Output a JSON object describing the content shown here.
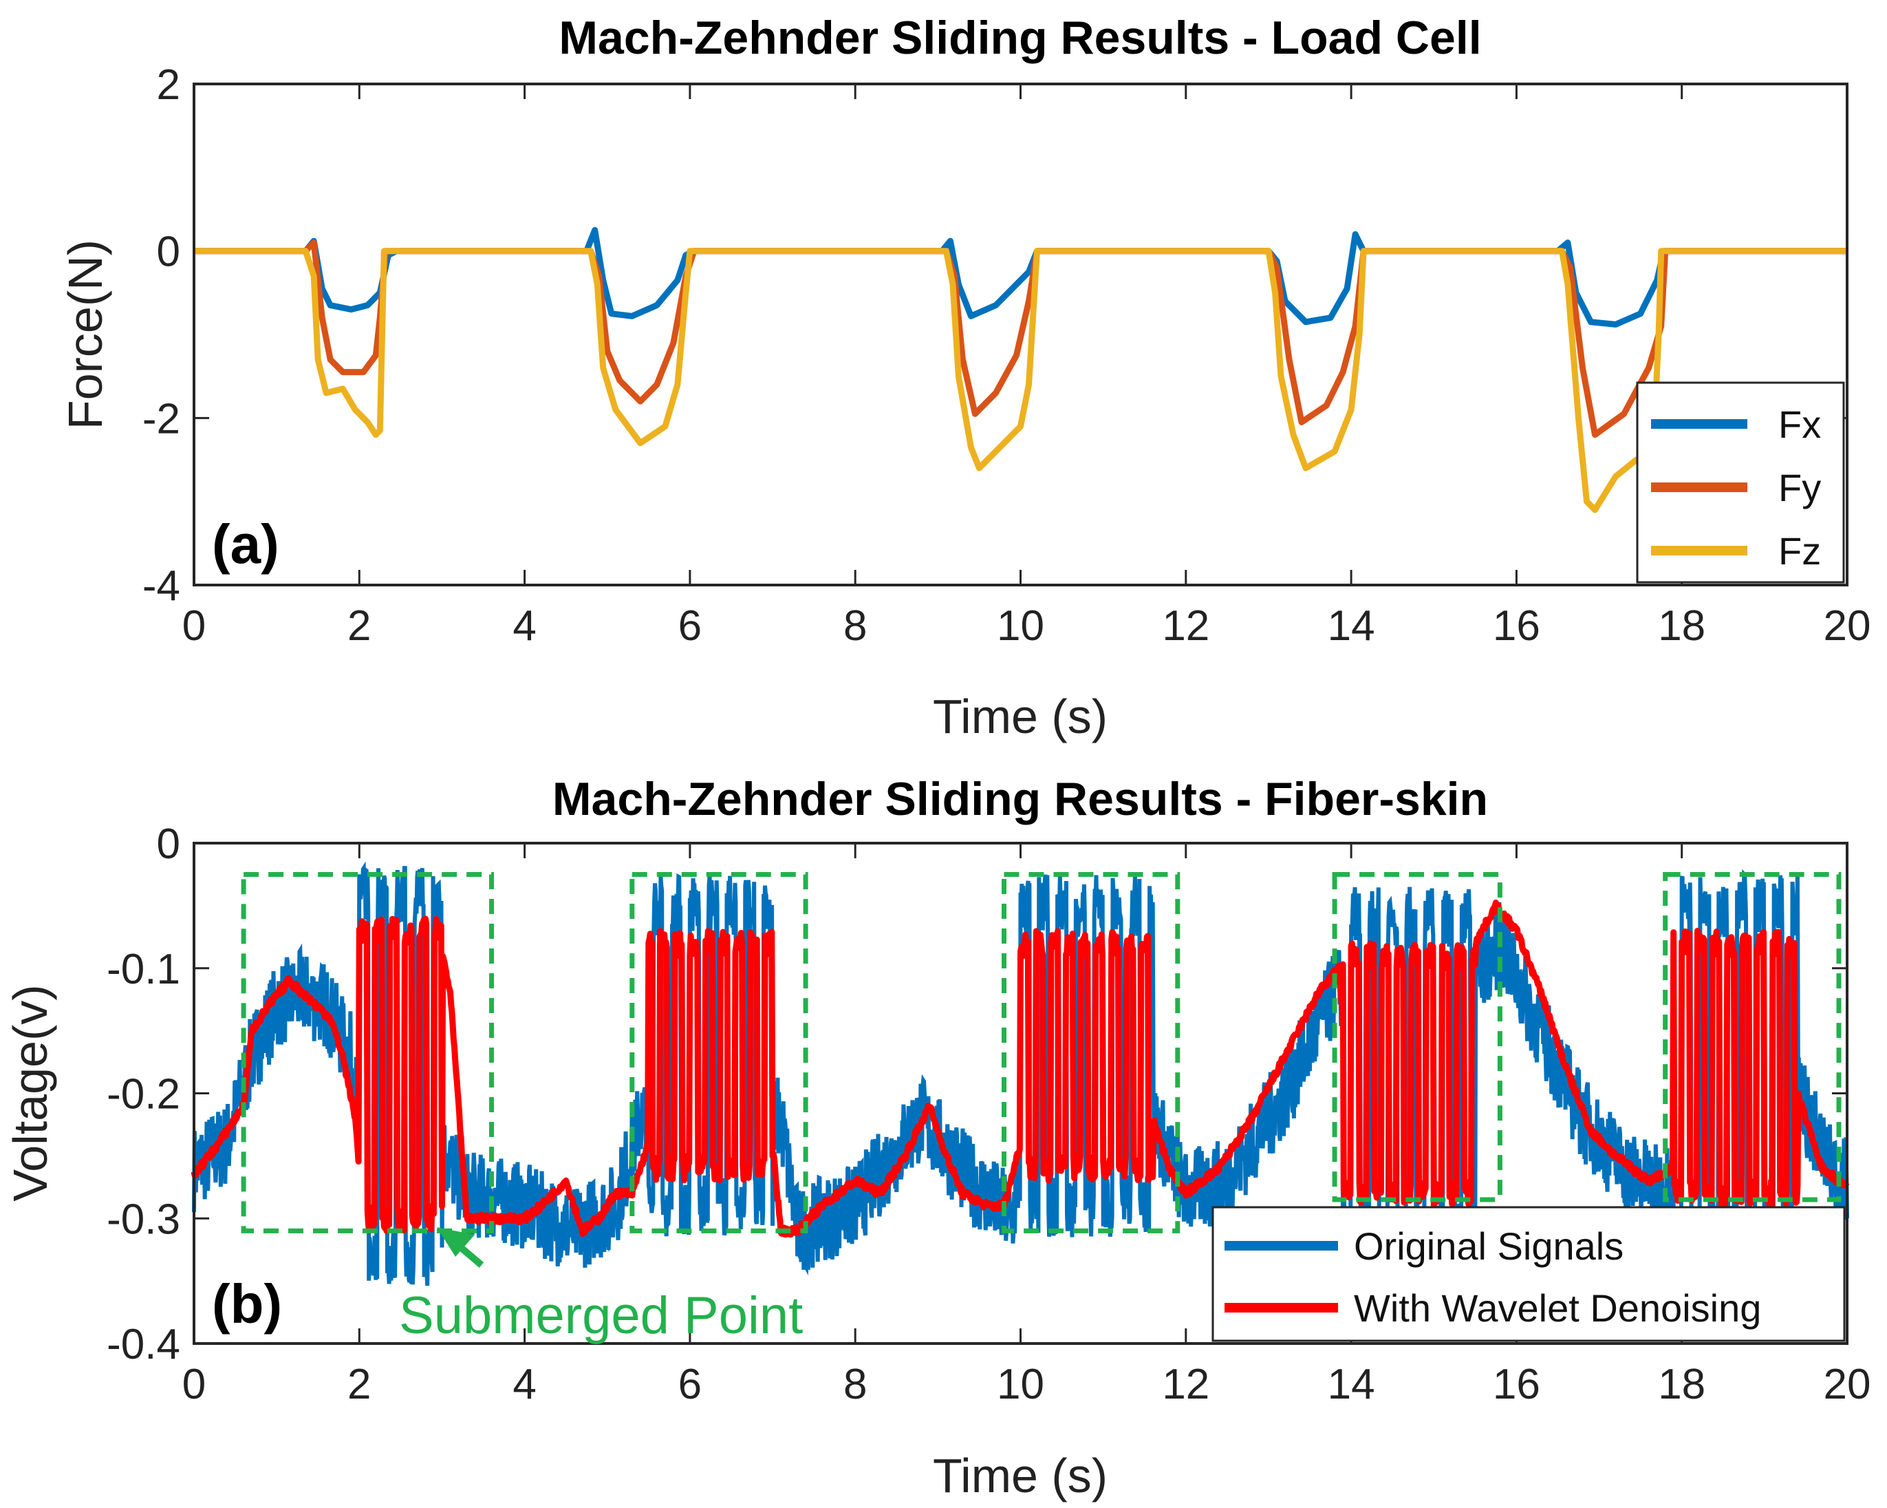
{
  "chart_data": [
    {
      "type": "line",
      "panel_label": "(a)",
      "title": "Mach-Zehnder Sliding Results - Load Cell",
      "xlabel": "Time (s)",
      "ylabel": "Force(N)",
      "xlim": [
        0,
        20
      ],
      "ylim": [
        -4,
        2
      ],
      "xticks": [
        "0",
        "2",
        "4",
        "6",
        "8",
        "10",
        "12",
        "14",
        "16",
        "18",
        "20"
      ],
      "yticks": [
        "2",
        "0",
        "-2",
        "-4"
      ],
      "legend_position": "bottom-right",
      "colors": {
        "Fx": "#0072BD",
        "Fy": "#D95319",
        "Fz": "#EDB120"
      },
      "series": [
        {
          "name": "Fx",
          "points": [
            [
              0,
              0
            ],
            [
              1.35,
              0
            ],
            [
              1.45,
              0.12
            ],
            [
              1.55,
              -0.45
            ],
            [
              1.65,
              -0.65
            ],
            [
              1.9,
              -0.7
            ],
            [
              2.1,
              -0.65
            ],
            [
              2.25,
              -0.5
            ],
            [
              2.35,
              -0.05
            ],
            [
              2.45,
              0
            ],
            [
              4.75,
              0
            ],
            [
              4.85,
              0.25
            ],
            [
              4.95,
              -0.35
            ],
            [
              5.05,
              -0.75
            ],
            [
              5.3,
              -0.78
            ],
            [
              5.6,
              -0.65
            ],
            [
              5.85,
              -0.35
            ],
            [
              5.95,
              -0.05
            ],
            [
              6.05,
              0
            ],
            [
              9.05,
              0
            ],
            [
              9.15,
              0.12
            ],
            [
              9.25,
              -0.4
            ],
            [
              9.4,
              -0.78
            ],
            [
              9.7,
              -0.65
            ],
            [
              9.95,
              -0.4
            ],
            [
              10.1,
              -0.25
            ],
            [
              10.2,
              0
            ],
            [
              13,
              0
            ],
            [
              13.1,
              -0.12
            ],
            [
              13.2,
              -0.6
            ],
            [
              13.45,
              -0.85
            ],
            [
              13.75,
              -0.8
            ],
            [
              13.95,
              -0.45
            ],
            [
              14.05,
              0.2
            ],
            [
              14.15,
              0
            ],
            [
              16.5,
              0
            ],
            [
              16.62,
              0.1
            ],
            [
              16.72,
              -0.5
            ],
            [
              16.9,
              -0.85
            ],
            [
              17.2,
              -0.88
            ],
            [
              17.5,
              -0.75
            ],
            [
              17.7,
              -0.35
            ],
            [
              17.78,
              0
            ],
            [
              20,
              0
            ]
          ]
        },
        {
          "name": "Fy",
          "points": [
            [
              0,
              0
            ],
            [
              1.35,
              0
            ],
            [
              1.45,
              0.1
            ],
            [
              1.55,
              -0.8
            ],
            [
              1.65,
              -1.3
            ],
            [
              1.8,
              -1.45
            ],
            [
              2.05,
              -1.45
            ],
            [
              2.2,
              -1.25
            ],
            [
              2.25,
              -0.8
            ],
            [
              2.32,
              0
            ],
            [
              4.8,
              0
            ],
            [
              4.9,
              -0.3
            ],
            [
              5.0,
              -1.2
            ],
            [
              5.15,
              -1.55
            ],
            [
              5.4,
              -1.8
            ],
            [
              5.6,
              -1.6
            ],
            [
              5.8,
              -1.1
            ],
            [
              5.95,
              -0.3
            ],
            [
              6.05,
              0
            ],
            [
              9.1,
              0
            ],
            [
              9.2,
              -0.3
            ],
            [
              9.3,
              -1.3
            ],
            [
              9.45,
              -1.95
            ],
            [
              9.7,
              -1.7
            ],
            [
              9.95,
              -1.25
            ],
            [
              10.1,
              -0.6
            ],
            [
              10.2,
              0
            ],
            [
              13.0,
              0
            ],
            [
              13.1,
              -0.2
            ],
            [
              13.25,
              -1.3
            ],
            [
              13.4,
              -2.05
            ],
            [
              13.7,
              -1.85
            ],
            [
              13.9,
              -1.45
            ],
            [
              14.05,
              -0.9
            ],
            [
              14.15,
              0
            ],
            [
              16.55,
              0
            ],
            [
              16.65,
              -0.2
            ],
            [
              16.8,
              -1.4
            ],
            [
              16.95,
              -2.2
            ],
            [
              17.3,
              -1.95
            ],
            [
              17.6,
              -1.4
            ],
            [
              17.75,
              -0.9
            ],
            [
              17.8,
              0
            ],
            [
              20,
              0
            ]
          ]
        },
        {
          "name": "Fz",
          "points": [
            [
              0,
              0
            ],
            [
              1.35,
              0
            ],
            [
              1.45,
              -0.3
            ],
            [
              1.5,
              -1.3
            ],
            [
              1.6,
              -1.7
            ],
            [
              1.8,
              -1.65
            ],
            [
              1.95,
              -1.9
            ],
            [
              2.1,
              -2.05
            ],
            [
              2.2,
              -2.2
            ],
            [
              2.25,
              -2.15
            ],
            [
              2.3,
              0
            ],
            [
              4.8,
              0
            ],
            [
              4.88,
              -0.4
            ],
            [
              4.95,
              -1.4
            ],
            [
              5.1,
              -1.9
            ],
            [
              5.4,
              -2.3
            ],
            [
              5.7,
              -2.1
            ],
            [
              5.85,
              -1.6
            ],
            [
              5.95,
              -0.5
            ],
            [
              6.0,
              0
            ],
            [
              9.1,
              0
            ],
            [
              9.18,
              -0.4
            ],
            [
              9.25,
              -1.5
            ],
            [
              9.4,
              -2.35
            ],
            [
              9.5,
              -2.6
            ],
            [
              9.75,
              -2.35
            ],
            [
              10.0,
              -2.1
            ],
            [
              10.1,
              -1.6
            ],
            [
              10.2,
              0
            ],
            [
              13.0,
              0
            ],
            [
              13.08,
              -0.5
            ],
            [
              13.15,
              -1.5
            ],
            [
              13.3,
              -2.2
            ],
            [
              13.45,
              -2.6
            ],
            [
              13.8,
              -2.4
            ],
            [
              14.0,
              -1.9
            ],
            [
              14.1,
              -1.0
            ],
            [
              14.15,
              0
            ],
            [
              16.55,
              0
            ],
            [
              16.62,
              -0.4
            ],
            [
              16.75,
              -2.0
            ],
            [
              16.85,
              -3.0
            ],
            [
              16.95,
              -3.1
            ],
            [
              17.2,
              -2.7
            ],
            [
              17.45,
              -2.5
            ],
            [
              17.65,
              -2.5
            ],
            [
              17.72,
              -1.0
            ],
            [
              17.75,
              0
            ],
            [
              20,
              0
            ]
          ]
        }
      ]
    },
    {
      "type": "line",
      "panel_label": "(b)",
      "title": "Mach-Zehnder Sliding Results - Fiber-skin",
      "xlabel": "Time (s)",
      "ylabel": "Voltage(v)",
      "xlim": [
        0,
        20
      ],
      "ylim": [
        -0.4,
        0
      ],
      "xticks": [
        "0",
        "2",
        "4",
        "6",
        "8",
        "10",
        "12",
        "14",
        "16",
        "18",
        "20"
      ],
      "yticks": [
        "0",
        "-0.1",
        "-0.2",
        "-0.3",
        "-0.4"
      ],
      "legend_position": "bottom-right",
      "colors": {
        "Original Signals": "#0072BD",
        "With Wavelet Denoising": "#FF0000",
        "boxes": "#22b14c"
      },
      "annotation": "Submerged Point",
      "annotation_target": [
        2.9,
        -0.31
      ],
      "highlight_boxes": [
        {
          "x": [
            0.6,
            3.6
          ],
          "y": [
            -0.31,
            -0.025
          ]
        },
        {
          "x": [
            5.3,
            7.4
          ],
          "y": [
            -0.31,
            -0.025
          ]
        },
        {
          "x": [
            9.8,
            11.9
          ],
          "y": [
            -0.31,
            -0.025
          ]
        },
        {
          "x": [
            13.8,
            15.8
          ],
          "y": [
            -0.285,
            -0.025
          ]
        },
        {
          "x": [
            17.8,
            19.9
          ],
          "y": [
            -0.285,
            -0.025
          ]
        }
      ],
      "series": [
        {
          "name": "Original Signals",
          "noise_amplitude": 0.035,
          "points": [
            [
              0,
              -0.26
            ],
            [
              0.4,
              -0.24
            ],
            [
              0.7,
              -0.17
            ],
            [
              1.0,
              -0.13
            ],
            [
              1.3,
              -0.12
            ],
            [
              1.6,
              -0.13
            ],
            [
              1.9,
              -0.17
            ],
            [
              2.0,
              -0.22
            ],
            [
              2.6,
              -0.2
            ],
            [
              3.3,
              -0.28
            ],
            [
              4.0,
              -0.29
            ],
            [
              4.6,
              -0.31
            ],
            [
              5.1,
              -0.29
            ],
            [
              5.4,
              -0.22
            ],
            [
              7.1,
              -0.22
            ],
            [
              7.3,
              -0.31
            ],
            [
              8.0,
              -0.29
            ],
            [
              8.8,
              -0.22
            ],
            [
              9.4,
              -0.27
            ],
            [
              9.9,
              -0.3
            ],
            [
              10.1,
              -0.22
            ],
            [
              11.6,
              -0.22
            ],
            [
              12.0,
              -0.28
            ],
            [
              12.5,
              -0.27
            ],
            [
              13.2,
              -0.2
            ],
            [
              13.8,
              -0.12
            ],
            [
              14.1,
              -0.1
            ],
            [
              15.6,
              -0.1
            ],
            [
              15.8,
              -0.08
            ],
            [
              16.3,
              -0.15
            ],
            [
              16.8,
              -0.22
            ],
            [
              17.3,
              -0.26
            ],
            [
              17.8,
              -0.28
            ],
            [
              18.0,
              -0.2
            ],
            [
              19.4,
              -0.2
            ],
            [
              19.8,
              -0.26
            ],
            [
              20,
              -0.27
            ]
          ]
        },
        {
          "name": "With Wavelet Denoising",
          "osc_intervals": [
            {
              "x": [
                2.0,
                3.0
              ],
              "low": -0.3,
              "high": -0.07
            },
            {
              "x": [
                5.5,
                7.0
              ],
              "low": -0.26,
              "high": -0.08
            },
            {
              "x": [
                10.0,
                11.6
              ],
              "low": -0.26,
              "high": -0.08
            },
            {
              "x": [
                13.9,
                15.5
              ],
              "low": -0.28,
              "high": -0.09
            },
            {
              "x": [
                17.9,
                19.4
              ],
              "low": -0.28,
              "high": -0.08
            }
          ],
          "points": [
            [
              0,
              -0.265
            ],
            [
              0.3,
              -0.24
            ],
            [
              0.6,
              -0.21
            ],
            [
              0.7,
              -0.15
            ],
            [
              0.9,
              -0.13
            ],
            [
              1.15,
              -0.11
            ],
            [
              1.4,
              -0.125
            ],
            [
              1.65,
              -0.14
            ],
            [
              1.8,
              -0.17
            ],
            [
              1.95,
              -0.22
            ],
            [
              2.0,
              -0.26
            ],
            [
              2.6,
              -0.32
            ],
            [
              2.8,
              -0.12
            ],
            [
              2.95,
              -0.07
            ],
            [
              3.1,
              -0.12
            ],
            [
              3.3,
              -0.3
            ],
            [
              3.7,
              -0.3
            ],
            [
              4.0,
              -0.3
            ],
            [
              4.2,
              -0.29
            ],
            [
              4.5,
              -0.27
            ],
            [
              4.7,
              -0.31
            ],
            [
              4.9,
              -0.3
            ],
            [
              5.1,
              -0.28
            ],
            [
              5.3,
              -0.28
            ],
            [
              5.5,
              -0.24
            ],
            [
              7.0,
              -0.24
            ],
            [
              7.1,
              -0.31
            ],
            [
              7.3,
              -0.31
            ],
            [
              7.6,
              -0.29
            ],
            [
              8.0,
              -0.27
            ],
            [
              8.3,
              -0.28
            ],
            [
              8.6,
              -0.25
            ],
            [
              8.9,
              -0.21
            ],
            [
              9.1,
              -0.25
            ],
            [
              9.3,
              -0.28
            ],
            [
              9.6,
              -0.29
            ],
            [
              9.8,
              -0.29
            ],
            [
              10.0,
              -0.24
            ],
            [
              11.6,
              -0.22
            ],
            [
              11.8,
              -0.26
            ],
            [
              12.0,
              -0.28
            ],
            [
              12.4,
              -0.26
            ],
            [
              12.8,
              -0.22
            ],
            [
              13.2,
              -0.17
            ],
            [
              13.6,
              -0.12
            ],
            [
              13.85,
              -0.1
            ],
            [
              13.9,
              -0.14
            ],
            [
              15.5,
              -0.08
            ],
            [
              15.75,
              -0.05
            ],
            [
              16.0,
              -0.07
            ],
            [
              16.3,
              -0.12
            ],
            [
              16.6,
              -0.18
            ],
            [
              16.9,
              -0.23
            ],
            [
              17.2,
              -0.25
            ],
            [
              17.6,
              -0.27
            ],
            [
              17.9,
              -0.26
            ],
            [
              18.0,
              -0.2
            ],
            [
              19.4,
              -0.2
            ],
            [
              19.7,
              -0.26
            ],
            [
              20,
              -0.275
            ]
          ]
        }
      ]
    }
  ]
}
